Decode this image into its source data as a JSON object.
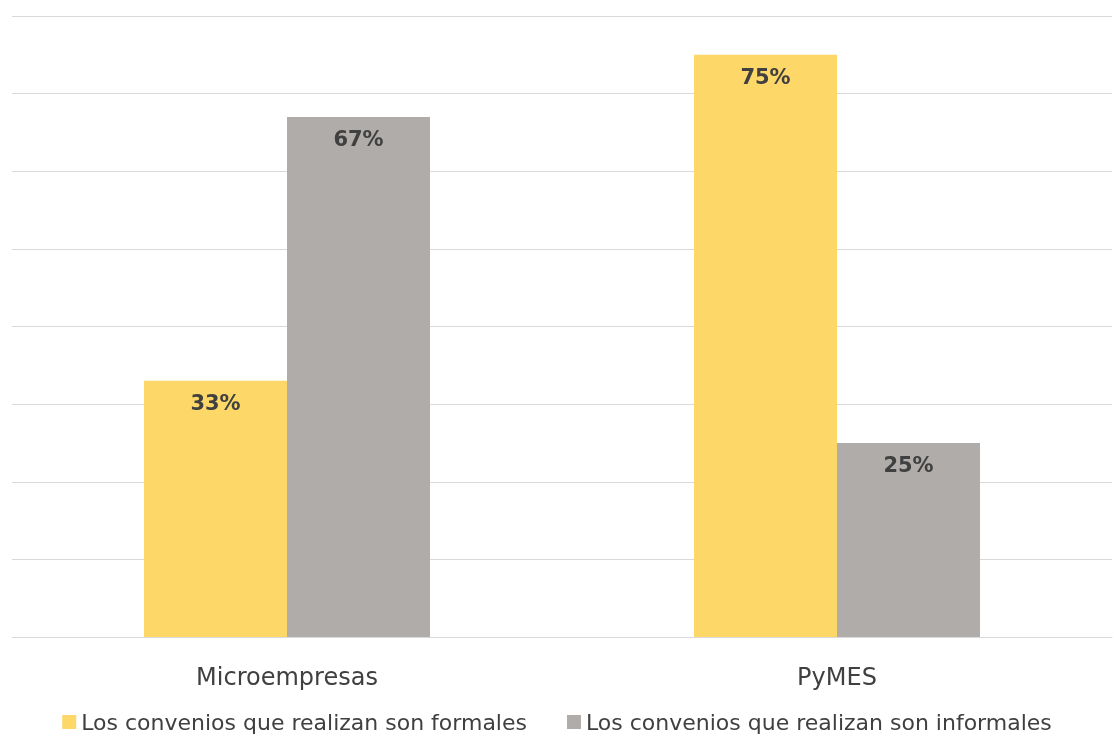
{
  "chart_data": {
    "type": "bar",
    "categories": [
      "Microempresas",
      "PyMES"
    ],
    "series": [
      {
        "name": "Los convenios que realizan son formales",
        "color": "#fdd868",
        "values": [
          33,
          75
        ],
        "value_labels": [
          "33%",
          "75%"
        ]
      },
      {
        "name": "Los convenios que realizan son informales",
        "color": "#b0aca9",
        "values": [
          67,
          25
        ],
        "value_labels": [
          "67%",
          "25%"
        ]
      }
    ],
    "ylim": [
      0,
      80
    ],
    "yticks": [
      {
        "value": 0,
        "label": null
      },
      {
        "value": 10,
        "label": null
      },
      {
        "value": 20,
        "label": null
      },
      {
        "value": 30,
        "label": null
      },
      {
        "value": 40,
        "label": null
      },
      {
        "value": 50,
        "label": null
      },
      {
        "value": 60,
        "label": null
      },
      {
        "value": 70,
        "label": null
      },
      {
        "value": 80,
        "label": null
      }
    ],
    "grid": "y",
    "legend": "bottom",
    "tick_labels": "x"
  }
}
